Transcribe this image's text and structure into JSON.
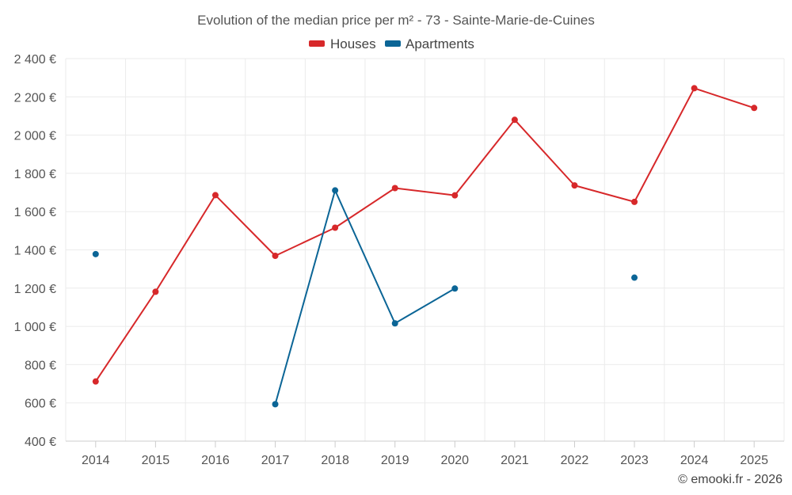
{
  "chart_data": {
    "type": "line",
    "title": "Evolution of the median price per m² - 73 - Sainte-Marie-de-Cuines",
    "xlabel": "",
    "ylabel": "",
    "categories": [
      "2014",
      "2015",
      "2016",
      "2017",
      "2018",
      "2019",
      "2020",
      "2021",
      "2022",
      "2023",
      "2024",
      "2025"
    ],
    "ylim": [
      400,
      2400
    ],
    "yticks": [
      400,
      600,
      800,
      1000,
      1200,
      1400,
      1600,
      1800,
      2000,
      2200,
      2400
    ],
    "ytick_labels": [
      "400 €",
      "600 €",
      "800 €",
      "1 000 €",
      "1 200 €",
      "1 400 €",
      "1 600 €",
      "1 800 €",
      "2 000 €",
      "2 200 €",
      "2 400 €"
    ],
    "grid": true,
    "legend_position": "top-center",
    "series": [
      {
        "name": "Houses",
        "color": "#d7282a",
        "values": [
          712,
          1181,
          1686,
          1369,
          1516,
          1723,
          1685,
          2080,
          1737,
          1651,
          2245,
          2142
        ]
      },
      {
        "name": "Apartments",
        "color": "#0b6596",
        "values": [
          1378,
          null,
          null,
          593,
          1711,
          1016,
          1198,
          null,
          null,
          1255,
          null,
          null
        ]
      }
    ]
  },
  "credit": "© emooki.fr - 2026"
}
